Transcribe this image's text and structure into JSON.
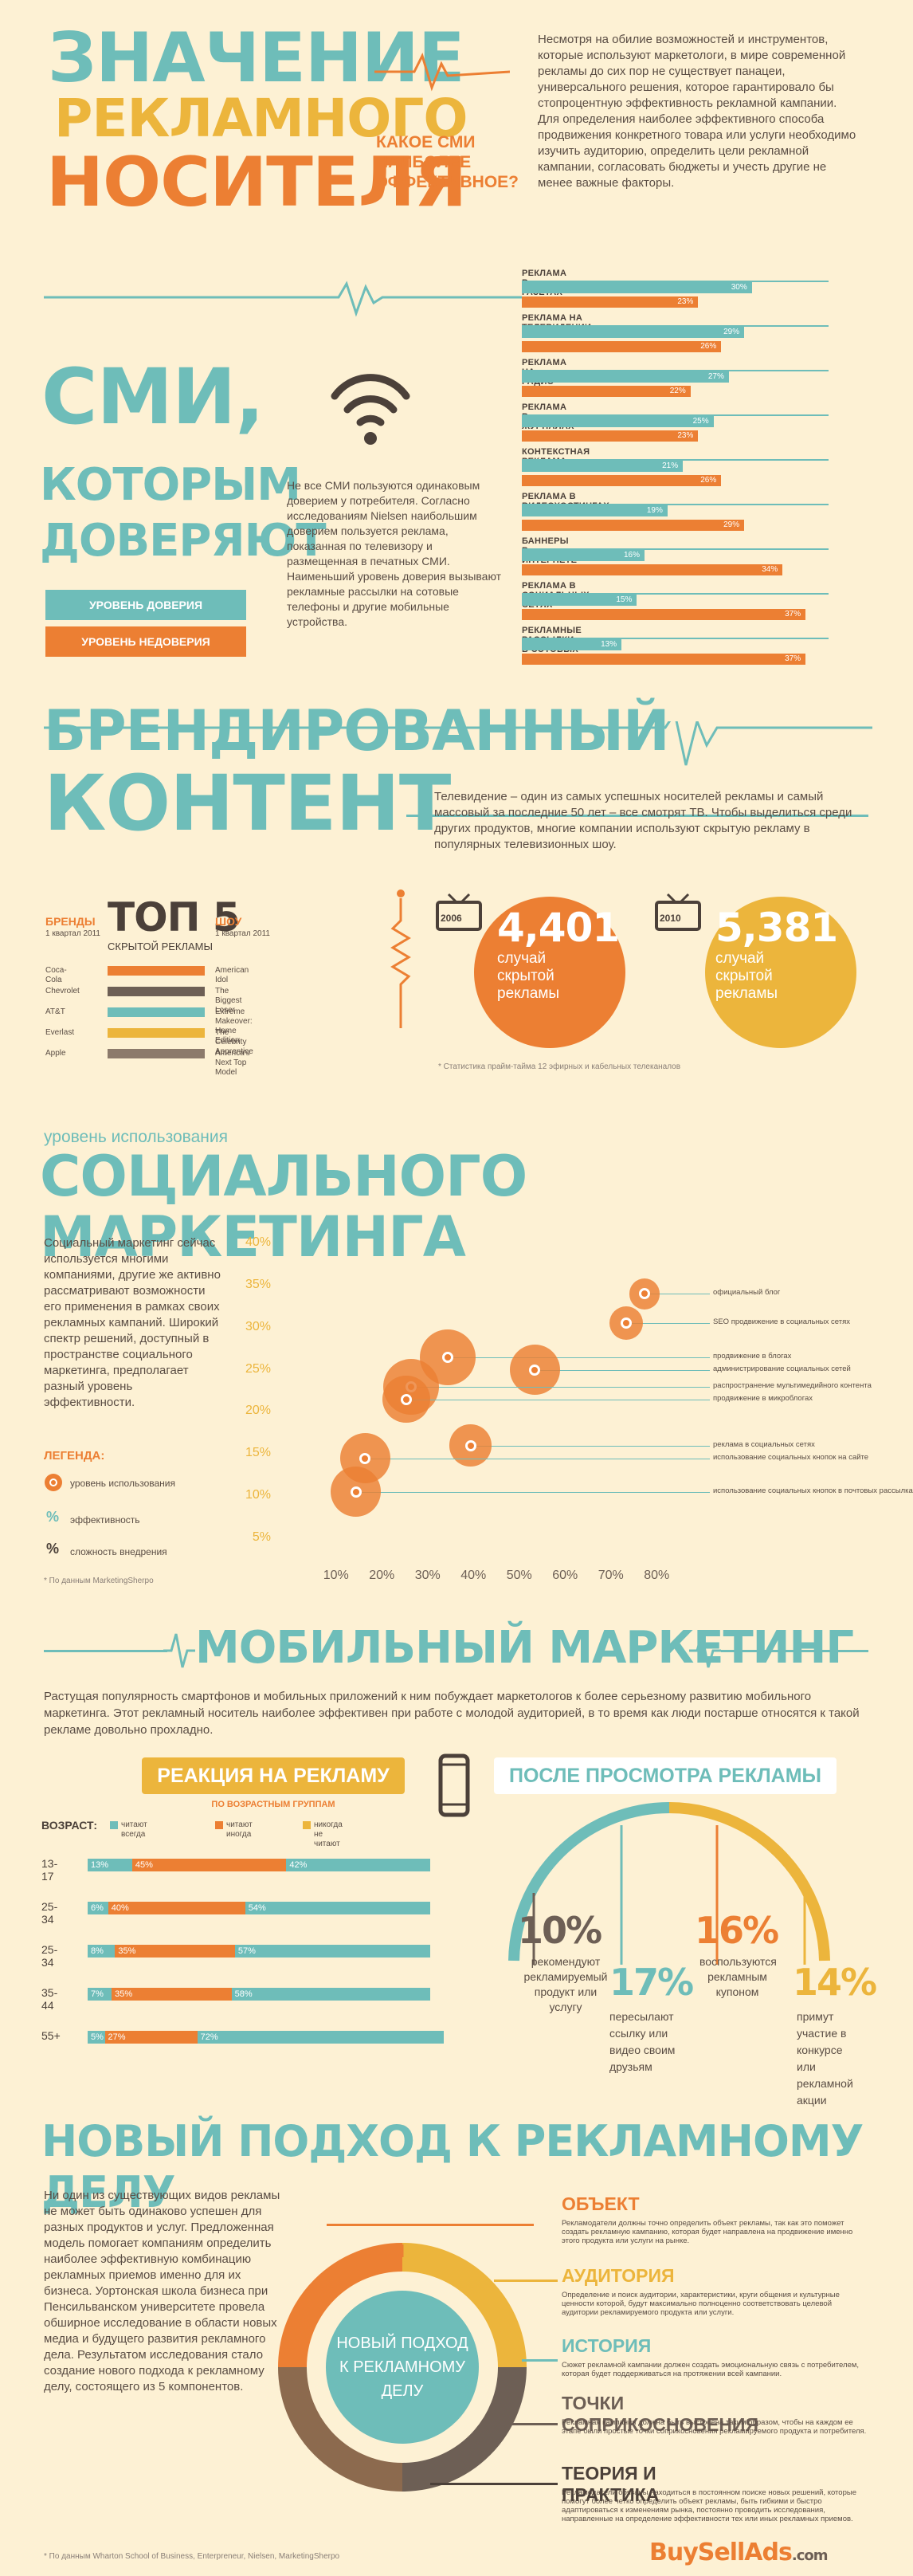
{
  "header": {
    "title_line1": "ЗНАЧЕНИЕ",
    "title_line2": "РЕКЛАМНОГО",
    "title_line3": "НОСИТЕЛЯ",
    "question": "КАКОЕ СМИ НАИБОЛЕЕ ЭФФЕКТИВНОЕ?",
    "intro": "Несмотря на обилие возможностей и инструментов, которые используют маркетологи, в мире современной рекламы до сих пор не существует панацеи, универсального решения, которое гарантировало бы стопроцентную эффективность рекламной кампании. Для определения наиболее эффективного способа продвижения конкретного товара или услуги необходимо изучить аудиторию, определить цели рекламной кампании, согласовать бюджеты и учесть другие не менее важные факторы."
  },
  "trust": {
    "title_line1": "СМИ,",
    "title_line2": "КОТОРЫМ",
    "title_line3": "ДОВЕРЯЮТ",
    "legend_trust": "УРОВЕНЬ ДОВЕРИЯ",
    "legend_distrust": "УРОВЕНЬ НЕДОВЕРИЯ",
    "text": "Не все СМИ пользуются одинаковым доверием у потребителя. Согласно исследованиям Nielsen наибольшим доверием пользуется реклама, показанная по телевизору и размещенная в печатных СМИ. Наименьший уровень доверия вызывают рекламные рассылки на сотовые телефоны и другие мобильные устройства."
  },
  "chart_data": [
    {
      "type": "bar",
      "categories": [
        "РЕКЛАМА В ГАЗЕТАХ",
        "РЕКЛАМА НА ТЕЛЕВИДЕНИИ",
        "РЕКЛАМА НА РАДИО",
        "РЕКЛАМА В ЖУРНАЛАХ",
        "КОНТЕКСТНАЯ РЕКЛАМА",
        "РЕКЛАМА В ВИДЕОХОСТИНГАХ",
        "БАННЕРЫ В ИНТЕРНЕТЕ",
        "РЕКЛАМА В СОЦИАЛЬНЫХ СЕТЯХ",
        "РЕКЛАМНЫЕ РАССЫЛКИ В СОТОВЫХ СЕТЯХ"
      ],
      "series": [
        {
          "name": "УРОВЕНЬ ДОВЕРИЯ",
          "values": [
            30,
            29,
            27,
            25,
            21,
            19,
            16,
            15,
            13
          ],
          "color": "#6ebdb9"
        },
        {
          "name": "УРОВЕНЬ НЕДОВЕРИЯ",
          "values": [
            23,
            26,
            22,
            23,
            26,
            29,
            34,
            37,
            37
          ],
          "color": "#ec7f33"
        }
      ],
      "labels_trust": [
        "30%",
        "29%",
        "27%",
        "25%",
        "21%",
        "19%",
        "16%",
        "15%",
        "13%"
      ],
      "labels_distrust": [
        "23%",
        "26%",
        "22%",
        "23%",
        "26%",
        "29%",
        "34%",
        "37%",
        "37%"
      ],
      "xlim": [
        0,
        40
      ]
    },
    {
      "type": "scatter",
      "title": "",
      "xlabel": "",
      "ylabel": "",
      "x_ticks": [
        "10%",
        "20%",
        "30%",
        "40%",
        "50%",
        "60%",
        "70%",
        "80%"
      ],
      "y_ticks": [
        "40%",
        "35%",
        "30%",
        "25%",
        "20%",
        "15%",
        "10%",
        "5%"
      ],
      "xlim": [
        5,
        85
      ],
      "ylim": [
        5,
        40
      ],
      "points": [
        {
          "name": "официальный блог",
          "x": 77,
          "y": 34,
          "size": 0.55
        },
        {
          "name": "SEO продвижение в социальных сетях",
          "x": 73,
          "y": 30.5,
          "size": 0.6
        },
        {
          "name": "продвижение в блогах",
          "x": 34,
          "y": 26.5,
          "size": 1.0
        },
        {
          "name": "администрирование социальных сетей",
          "x": 53,
          "y": 25,
          "size": 0.9
        },
        {
          "name": "распространение мультимедийного контента",
          "x": 26,
          "y": 23,
          "size": 1.0
        },
        {
          "name": "продвижение в микроблогах",
          "x": 25,
          "y": 21.5,
          "size": 0.85
        },
        {
          "name": "реклама в социальных сетях",
          "x": 39,
          "y": 16,
          "size": 0.75
        },
        {
          "name": "использование социальных кнопок на сайте",
          "x": 16,
          "y": 14.5,
          "size": 0.9
        },
        {
          "name": "использование социальных кнопок в почтовых рассылках",
          "x": 14,
          "y": 10.5,
          "size": 0.9
        }
      ]
    },
    {
      "type": "bar",
      "title": "РЕАКЦИЯ НА РЕКЛАМУ",
      "subtitle": "ПО ВОЗРАСТНЫМ ГРУППАМ",
      "categories": [
        "13-17",
        "25-34",
        "25-34",
        "35-44",
        "55+"
      ],
      "series": [
        {
          "name": "читают всегда",
          "values": [
            13,
            6,
            8,
            7,
            5
          ],
          "color": "#6ebdb9"
        },
        {
          "name": "читают иногда",
          "values": [
            45,
            40,
            35,
            35,
            27
          ],
          "color": "#ec7f33"
        },
        {
          "name": "никогда не читают",
          "values": [
            42,
            54,
            57,
            58,
            72
          ],
          "color": "#ecb53c"
        }
      ],
      "labels": [
        [
          "13%",
          "45%",
          "42%"
        ],
        [
          "6%",
          "40%",
          "54%"
        ],
        [
          "8%",
          "35%",
          "57%"
        ],
        [
          "7%",
          "35%",
          "58%"
        ],
        [
          "5%",
          "27%",
          "72%"
        ]
      ],
      "xlim": [
        0,
        100
      ]
    }
  ],
  "branded": {
    "title_line1": "БРЕНДИРОВАННЫЙ",
    "title_line2": "КОНТЕНТ",
    "text": "Телевидение – один из самых успешных носителей рекламы и самый массовый за последние 50 лет – все смотрят ТВ. Чтобы выделиться среди других продуктов, многие компании используют скрытую рекламу в популярных телевизионных шоу.",
    "brands_label": "БРЕНДЫ",
    "brands_date": "1 квартал 2011",
    "top5_title": "ТОП 5",
    "top5_sub": "СКРЫТОЙ РЕКЛАМЫ",
    "shows_label": "ШОУ",
    "shows_date": "1 квартал 2011",
    "rows": [
      {
        "brand": "Coca-Cola",
        "show": "American Idol",
        "color": "#ec7f33"
      },
      {
        "brand": "Chevrolet",
        "show": "The Biggest Loser",
        "color": "#6d5f55"
      },
      {
        "brand": "AT&T",
        "show": "Extreme Makeover: Home Edition",
        "color": "#6ebdb9"
      },
      {
        "brand": "Everlast",
        "show": "The Celebrity Apprentice",
        "color": "#ecb53c"
      },
      {
        "brand": "Apple",
        "show": "America's Next Top Model",
        "color": "#8c7a6b"
      }
    ],
    "tv1_year": "2006",
    "tv1_value": "4,401",
    "tv1_caption": "случай скрытой рекламы",
    "tv2_year": "2010",
    "tv2_value": "5,381",
    "tv2_caption": "случай скрытой рекламы",
    "footnote": "* Статистика прайм-тайма 12 эфирных и кабельных телеканалов"
  },
  "social": {
    "pre_title": "уровень использования",
    "title": "СОЦИАЛЬНОГО МАРКЕТИНГА",
    "text": "Социальный маркетинг сейчас используется многими компаниями, другие же активно рассматривают возможности его применения в рамках своих рекламных кампаний. Широкий спектр решений, доступный в пространстве социального маркетинга, предполагает разный уровень эффективности.",
    "legend_title": "ЛЕГЕНДА:",
    "legend_usage": "уровень использования",
    "legend_eff": "эффективность",
    "legend_diff": "сложность внедрения",
    "footnote": "* По данным MarketingSherpo"
  },
  "mobile": {
    "title": "МОБИЛЬНЫЙ МАРКЕТИНГ",
    "text": "Растущая популярность смартфонов и мобильных приложений к ним побуждает маркетологов к более серьезному развитию мобильного маркетинга. Этот рекламный носитель наиболее эффективен при работе с молодой аудиторией, в то время как люди постарше относятся к такой рекламе довольно прохладно.",
    "reaction_title": "РЕАКЦИЯ НА РЕКЛАМУ",
    "reaction_sub": "ПО ВОЗРАСТНЫМ ГРУППАМ",
    "age_label": "ВОЗРАСТ:",
    "after_title": "ПОСЛЕ ПРОСМОТРА РЕКЛАМЫ",
    "stats": [
      {
        "value": "10%",
        "text": "рекомендуют рекламируемый продукт или услугу",
        "color": "#6d5f55"
      },
      {
        "value": "17%",
        "text": "пересылают ссылку или видео своим друзьям",
        "color": "#6ebdb9"
      },
      {
        "value": "16%",
        "text": "воспользуются рекламным купоном",
        "color": "#ec7f33"
      },
      {
        "value": "14%",
        "text": "примут участие в конкурсе или рекламной акции",
        "color": "#ecb53c"
      }
    ]
  },
  "approach": {
    "title": "НОВЫЙ ПОДХОД К РЕКЛАМНОМУ ДЕЛУ",
    "text": "Ни один из существующих видов рекламы не может быть одинаково успешен для разных продуктов и услуг. Предложенная модель помогает компаниям определить наиболее эффективную комбинацию рекламных приемов именно для их бизнеса. Уортонская школа бизнеса при Пенсильванском университете провела обширное исследование в области новых медиа и будущего развития рекламного дела. Результатом исследования стало создание нового подхода к рекламному делу, состоящего из 5 компонентов.",
    "center": "НОВЫЙ ПОДХОД К РЕКЛАМНОМУ ДЕЛУ",
    "items": [
      {
        "title": "ОБЪЕКТ",
        "text": "Рекламодатели должны точно определить объект рекламы, так как это поможет создать рекламную кампанию, которая будет направлена на продвижение именно этого продукта или услуги на рынке.",
        "color": "#ec7f33"
      },
      {
        "title": "АУДИТОРИЯ",
        "text": "Определение и поиск аудитории, характеристики, круги общения и культурные ценности которой, будут максимально полноценно соответствовать целевой аудитории рекламируемого продукта или услуги.",
        "color": "#ecb53c"
      },
      {
        "title": "ИСТОРИЯ",
        "text": "Сюжет рекламной кампании должен создать эмоциональную связь с потребителем, которая будет поддерживаться на протяжении всей кампании.",
        "color": "#6ebdb9"
      },
      {
        "title": "ТОЧКИ СОПРИКОСНОВЕНИЯ",
        "text": "Рекламная кампания должна быть выстроена таким образом, чтобы на каждом ее этапе были простые точки соприкосновения рекламируемого продукта и потребителя.",
        "color": "#6d5f55"
      },
      {
        "title": "ТЕОРИЯ И ПРАКТИКА",
        "text": "Рекламодатели обязаны находиться в постоянном поиске новых решений, которые помогут более четко определить объект рекламы, быть гибкими и быстро адаптироваться к изменениям рынка, постоянно проводить исследования, направленные на определение эффективности тех или иных рекламных приемов.",
        "color": "#4b4039"
      }
    ],
    "footnote": "* По данным Wharton School of Business, Enterpreneur, Nielsen, MarketingSherpo",
    "brand": "BuySellAds",
    "brand_suffix": ".com"
  }
}
